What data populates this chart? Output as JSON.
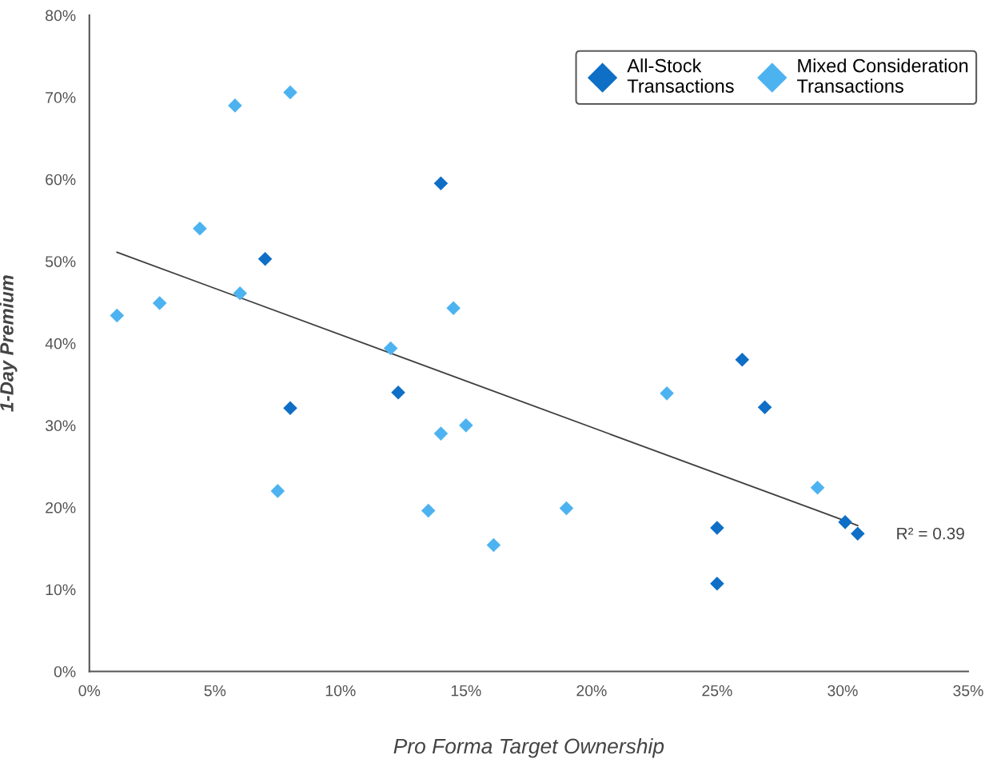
{
  "chart_data": {
    "type": "scatter",
    "xlabel": "Pro Forma Target Ownership",
    "ylabel": "1-Day Premium",
    "xlim": [
      0,
      35
    ],
    "ylim": [
      0,
      80
    ],
    "xticks": [
      {
        "value": 0,
        "label": "0%"
      },
      {
        "value": 5,
        "label": "5%"
      },
      {
        "value": 10,
        "label": "10%"
      },
      {
        "value": 15,
        "label": "15%"
      },
      {
        "value": 20,
        "label": "20%"
      },
      {
        "value": 25,
        "label": "25%"
      },
      {
        "value": 30,
        "label": "30%"
      },
      {
        "value": 35,
        "label": "35%"
      }
    ],
    "yticks": [
      {
        "value": 0,
        "label": "0%"
      },
      {
        "value": 10,
        "label": "10%"
      },
      {
        "value": 20,
        "label": "20%"
      },
      {
        "value": 30,
        "label": "30%"
      },
      {
        "value": 40,
        "label": "40%"
      },
      {
        "value": 50,
        "label": "50%"
      },
      {
        "value": 60,
        "label": "60%"
      },
      {
        "value": 70,
        "label": "70%"
      },
      {
        "value": 80,
        "label": "80%"
      }
    ],
    "marker": "diamond",
    "grid": false,
    "legend": "top right",
    "series": [
      {
        "name": "All-Stock\nTransactions",
        "color": "#0f6fc6",
        "x": [
          14.0,
          7.0,
          8.0,
          12.3,
          26.0,
          26.9,
          25.0,
          25.0,
          30.1,
          30.6
        ],
        "values": [
          59.5,
          50.3,
          32.1,
          34.0,
          38.0,
          32.2,
          17.5,
          10.7,
          18.2,
          16.8
        ]
      },
      {
        "name": "Mixed Consideration\nTransactions",
        "color": "#4db3f0",
        "x": [
          1.1,
          2.8,
          4.4,
          5.8,
          8.0,
          6.0,
          7.5,
          12.0,
          14.5,
          14.0,
          15.0,
          13.5,
          16.1,
          19.0,
          23.0,
          29.0
        ],
        "values": [
          43.4,
          44.9,
          54.0,
          69.0,
          70.6,
          46.1,
          22.0,
          39.4,
          44.3,
          29.0,
          30.0,
          19.6,
          15.4,
          19.9,
          33.9,
          22.4
        ]
      },
      {
        "type": "line",
        "color": "#404040",
        "marker": "none",
        "x": [
          1.1,
          30.6
        ],
        "values": [
          51.1,
          17.8
        ]
      }
    ],
    "annotations": [
      "R² = 0.39"
    ]
  }
}
